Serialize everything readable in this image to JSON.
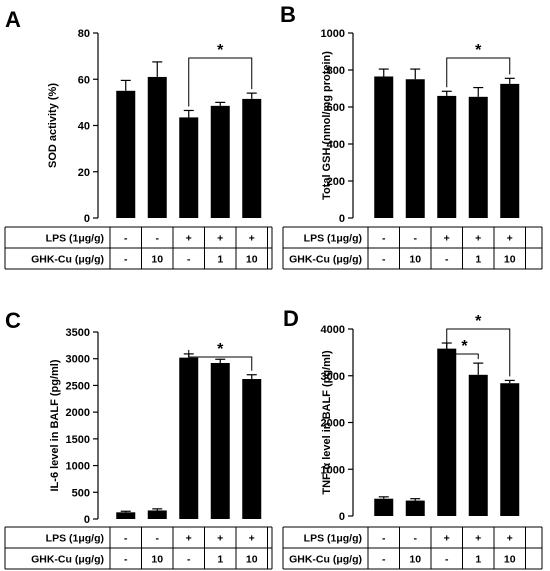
{
  "chart_data": [
    {
      "panel": "A",
      "type": "bar",
      "ylabel": "SOD activity (%)",
      "ylim": [
        0,
        80
      ],
      "yticks": [
        0,
        20,
        40,
        60,
        80
      ],
      "values": [
        55,
        61,
        43.5,
        48.5,
        51.5
      ],
      "errors": [
        4.5,
        6.5,
        3,
        1.5,
        2.5
      ],
      "table": [
        {
          "label": "LPS (1μg/g)",
          "values": [
            "-",
            "-",
            "+",
            "+",
            "+"
          ]
        },
        {
          "label": "GHK-Cu  (μg/g)",
          "values": [
            "-",
            "10",
            "-",
            "1",
            "10"
          ]
        }
      ],
      "significance": [
        {
          "from": 2,
          "to": 4,
          "label": "*"
        }
      ]
    },
    {
      "panel": "B",
      "type": "bar",
      "ylabel": "Total GSH (nmol/mg protein)",
      "ylim": [
        0,
        1000
      ],
      "yticks": [
        0,
        200,
        400,
        600,
        800,
        1000
      ],
      "values": [
        765,
        750,
        660,
        655,
        725
      ],
      "errors": [
        40,
        55,
        25,
        50,
        30
      ],
      "table": [
        {
          "label": "LPS (1μg/g)",
          "values": [
            "-",
            "-",
            "+",
            "+",
            "+"
          ]
        },
        {
          "label": "GHK-Cu  (μg/g)",
          "values": [
            "-",
            "10",
            "-",
            "1",
            "10"
          ]
        }
      ],
      "significance": [
        {
          "from": 2,
          "to": 4,
          "label": "*"
        }
      ]
    },
    {
      "panel": "C",
      "type": "bar",
      "ylabel": "IL-6 level in BALF (pg/ml)",
      "ylim": [
        0,
        3500
      ],
      "yticks": [
        0,
        500,
        1000,
        1500,
        2000,
        2500,
        3000,
        3500
      ],
      "values": [
        125,
        160,
        3020,
        2920,
        2620
      ],
      "errors": [
        20,
        30,
        70,
        70,
        80
      ],
      "table": [
        {
          "label": "LPS (1μg/g)",
          "values": [
            "-",
            "-",
            "+",
            "+",
            "+"
          ]
        },
        {
          "label": "GHK-Cu  (μg/g)",
          "values": [
            "-",
            "10",
            "-",
            "1",
            "10"
          ]
        }
      ],
      "significance": [
        {
          "from": 2,
          "to": 4,
          "label": "*"
        }
      ]
    },
    {
      "panel": "D",
      "type": "bar",
      "ylabel": "TNF-α level in BALF (pg/ml)",
      "ylim": [
        0,
        4000
      ],
      "yticks": [
        0,
        1000,
        2000,
        3000,
        4000
      ],
      "values": [
        370,
        330,
        3580,
        3020,
        2840
      ],
      "errors": [
        40,
        40,
        120,
        250,
        60
      ],
      "table": [
        {
          "label": "LPS (1μg/g)",
          "values": [
            "-",
            "-",
            "+",
            "+",
            "+"
          ]
        },
        {
          "label": "GHK-Cu  (μg/g)",
          "values": [
            "-",
            "10",
            "-",
            "1",
            "10"
          ]
        }
      ],
      "significance": [
        {
          "from": 2,
          "to": 3,
          "label": "*"
        },
        {
          "from": 2,
          "to": 4,
          "label": "*"
        }
      ]
    }
  ]
}
